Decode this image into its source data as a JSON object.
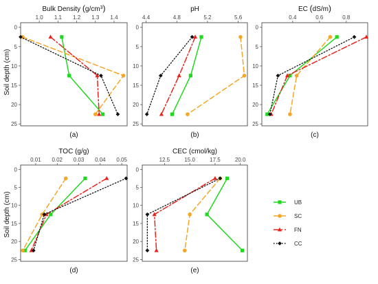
{
  "y_axis_label": "Soil depth (cm)",
  "legend": [
    {
      "key": "UB",
      "label": "UB",
      "color": "#1fd91f",
      "marker": "square",
      "dash": ""
    },
    {
      "key": "SC",
      "label": "SC",
      "color": "#f5a623",
      "marker": "circle",
      "dash": "7,4"
    },
    {
      "key": "FN",
      "label": "FN",
      "color": "#e8231d",
      "marker": "triangle",
      "dash": "8,3,2,3"
    },
    {
      "key": "CC",
      "label": "CC",
      "color": "#111111",
      "marker": "diamond",
      "dash": "1.5,2.5"
    }
  ],
  "chart_data": [
    {
      "type": "line",
      "label": "(a)",
      "title_parts": [
        "Bulk Density ",
        "(",
        "g",
        "/",
        "cm",
        "3",
        ")"
      ],
      "xlim": [
        0.9,
        1.47
      ],
      "xticks": [
        1.0,
        1.1,
        1.2,
        1.3,
        1.4
      ],
      "xtick_labels": [
        "1.0",
        "1.1",
        "1.2",
        "1.3",
        "1.4"
      ],
      "ylim": [
        -1.2,
        25.5
      ],
      "yticks": [
        0,
        5,
        10,
        15,
        20,
        25
      ],
      "ytick_labels": [
        "0",
        "5",
        "10",
        "15",
        "20",
        "25"
      ],
      "depths": [
        2.5,
        12.5,
        22.5
      ],
      "series": [
        {
          "key": "UB",
          "values": [
            1.12,
            1.16,
            1.34
          ]
        },
        {
          "key": "SC",
          "values": [
            0.91,
            1.45,
            1.3
          ]
        },
        {
          "key": "FN",
          "values": [
            1.06,
            1.31,
            1.32
          ]
        },
        {
          "key": "CC",
          "values": [
            0.9,
            1.33,
            1.42
          ]
        }
      ]
    },
    {
      "type": "line",
      "label": "(b)",
      "title_parts": [
        "pH"
      ],
      "xlim": [
        4.35,
        5.72
      ],
      "xticks": [
        4.4,
        4.8,
        5.2,
        5.6
      ],
      "xtick_labels": [
        "4.4",
        "4.8",
        "5.2",
        "5.6"
      ],
      "ylim": [
        -1.2,
        25.5
      ],
      "yticks": [
        0,
        5,
        10,
        15,
        20,
        25
      ],
      "ytick_labels": [
        "0",
        "5",
        "10",
        "15",
        "20",
        "25"
      ],
      "depths": [
        2.5,
        12.5,
        22.5
      ],
      "series": [
        {
          "key": "UB",
          "values": [
            5.12,
            4.98,
            4.74
          ]
        },
        {
          "key": "SC",
          "values": [
            5.63,
            5.68,
            4.94
          ]
        },
        {
          "key": "FN",
          "values": [
            5.04,
            4.83,
            4.6
          ]
        },
        {
          "key": "CC",
          "values": [
            5.0,
            4.59,
            4.41
          ]
        }
      ]
    },
    {
      "type": "line",
      "label": "(c)",
      "title_parts": [
        "EC ",
        "(",
        "dS",
        "/",
        "m",
        ")"
      ],
      "xlim": [
        0.17,
        0.96
      ],
      "xticks": [
        0.4,
        0.6,
        0.8
      ],
      "xtick_labels": [
        "0.4",
        "0.6",
        "0.8"
      ],
      "ylim": [
        -1.2,
        25.5
      ],
      "yticks": [
        0,
        5,
        10,
        15,
        20,
        25
      ],
      "ytick_labels": [
        "0",
        "5",
        "10",
        "15",
        "20",
        "25"
      ],
      "depths": [
        2.5,
        12.5,
        22.5
      ],
      "series": [
        {
          "key": "UB",
          "values": [
            0.73,
            0.38,
            0.21
          ]
        },
        {
          "key": "SC",
          "values": [
            0.68,
            0.43,
            0.38
          ]
        },
        {
          "key": "FN",
          "values": [
            0.95,
            0.36,
            0.24
          ]
        },
        {
          "key": "CC",
          "values": [
            0.86,
            0.29,
            0.23
          ]
        }
      ]
    },
    {
      "type": "line",
      "label": "(d)",
      "title_parts": [
        "TOC (g/g)"
      ],
      "xlim": [
        0.003,
        0.0525
      ],
      "xticks": [
        0.01,
        0.02,
        0.03,
        0.04,
        0.05
      ],
      "xtick_labels": [
        "0.01",
        "0.02",
        "0.03",
        "0.04",
        "0.05"
      ],
      "ylim": [
        -1.2,
        25.5
      ],
      "yticks": [
        0,
        5,
        10,
        15,
        20,
        25
      ],
      "ytick_labels": [
        "0",
        "5",
        "10",
        "15",
        "20",
        "25"
      ],
      "depths": [
        2.5,
        12.5,
        22.5
      ],
      "series": [
        {
          "key": "UB",
          "values": [
            0.033,
            0.017,
            0.005
          ]
        },
        {
          "key": "SC",
          "values": [
            0.024,
            0.013,
            0.004
          ]
        },
        {
          "key": "FN",
          "values": [
            0.043,
            0.015,
            0.008
          ]
        },
        {
          "key": "CC",
          "values": [
            0.052,
            0.014,
            0.009
          ]
        }
      ]
    },
    {
      "type": "line",
      "label": "(e)",
      "title_parts": [
        "CEC (cmol/kg)"
      ],
      "xlim": [
        10.3,
        20.7
      ],
      "xticks": [
        12.5,
        15.0,
        17.5,
        20.0
      ],
      "xtick_labels": [
        "12.5",
        "15.0",
        "17.5",
        "20.0"
      ],
      "ylim": [
        -1.2,
        25.5
      ],
      "yticks": [
        0,
        5,
        10,
        15,
        20,
        25
      ],
      "ytick_labels": [
        "0",
        "5",
        "10",
        "15",
        "20",
        "25"
      ],
      "depths": [
        2.5,
        12.5,
        22.5
      ],
      "series": [
        {
          "key": "UB",
          "values": [
            18.7,
            16.7,
            20.2
          ]
        },
        {
          "key": "SC",
          "values": [
            18.0,
            15.0,
            14.5
          ]
        },
        {
          "key": "FN",
          "values": [
            17.5,
            11.5,
            11.7
          ]
        },
        {
          "key": "CC",
          "values": [
            18.0,
            10.8,
            10.8
          ]
        }
      ]
    }
  ]
}
